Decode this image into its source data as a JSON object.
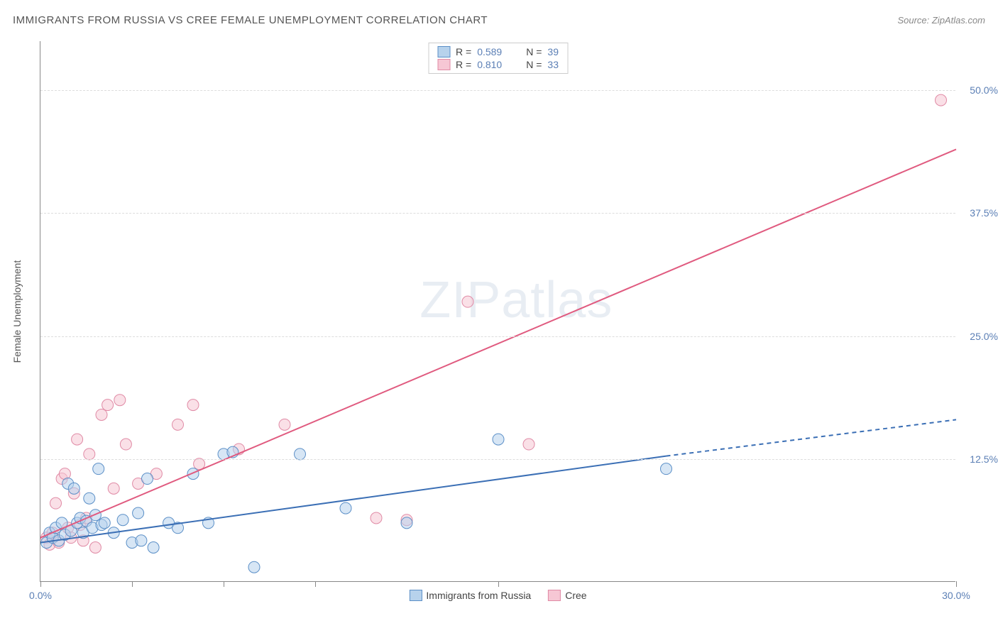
{
  "title": "IMMIGRANTS FROM RUSSIA VS CREE FEMALE UNEMPLOYMENT CORRELATION CHART",
  "source": "Source: ZipAtlas.com",
  "y_axis_label": "Female Unemployment",
  "watermark_a": "ZIP",
  "watermark_b": "atlas",
  "chart": {
    "type": "scatter-with-regression",
    "xlim": [
      0,
      30
    ],
    "ylim": [
      0,
      55
    ],
    "x_ticks": [
      0,
      3,
      6,
      9,
      15,
      30
    ],
    "x_tick_labels": {
      "0": "0.0%",
      "30": "30.0%"
    },
    "y_grid": [
      12.5,
      25.0,
      37.5,
      50.0
    ],
    "y_tick_labels": [
      "12.5%",
      "25.0%",
      "37.5%",
      "50.0%"
    ],
    "background_color": "#ffffff",
    "grid_color": "#dddddd",
    "axis_color": "#888888",
    "marker_radius": 8,
    "marker_opacity": 0.55,
    "series": {
      "russia": {
        "label": "Immigrants from Russia",
        "color_fill": "#b7d2ec",
        "color_stroke": "#5b8fc7",
        "line_color": "#3b6fb5",
        "line_width": 2,
        "dash_extension": true,
        "R": "0.589",
        "N": "39",
        "regression": {
          "x1": 0,
          "y1": 4.0,
          "x2": 20.5,
          "y2": 12.8,
          "x3": 30,
          "y3": 16.5
        },
        "points": [
          [
            0.2,
            4.0
          ],
          [
            0.3,
            5.0
          ],
          [
            0.4,
            4.5
          ],
          [
            0.5,
            5.5
          ],
          [
            0.6,
            4.2
          ],
          [
            0.7,
            6.0
          ],
          [
            0.8,
            4.8
          ],
          [
            0.9,
            10.0
          ],
          [
            1.0,
            5.2
          ],
          [
            1.1,
            9.5
          ],
          [
            1.2,
            6.0
          ],
          [
            1.3,
            6.5
          ],
          [
            1.4,
            5.0
          ],
          [
            1.5,
            6.2
          ],
          [
            1.6,
            8.5
          ],
          [
            1.7,
            5.5
          ],
          [
            1.8,
            6.8
          ],
          [
            1.9,
            11.5
          ],
          [
            2.0,
            5.8
          ],
          [
            2.1,
            6.0
          ],
          [
            2.4,
            5.0
          ],
          [
            2.7,
            6.3
          ],
          [
            3.0,
            4.0
          ],
          [
            3.2,
            7.0
          ],
          [
            3.3,
            4.2
          ],
          [
            3.5,
            10.5
          ],
          [
            3.7,
            3.5
          ],
          [
            4.2,
            6.0
          ],
          [
            4.5,
            5.5
          ],
          [
            5.0,
            11.0
          ],
          [
            5.5,
            6.0
          ],
          [
            6.0,
            13.0
          ],
          [
            6.3,
            13.2
          ],
          [
            7.0,
            1.5
          ],
          [
            8.5,
            13.0
          ],
          [
            10.0,
            7.5
          ],
          [
            12.0,
            6.0
          ],
          [
            15.0,
            14.5
          ],
          [
            20.5,
            11.5
          ]
        ]
      },
      "cree": {
        "label": "Cree",
        "color_fill": "#f6c7d4",
        "color_stroke": "#e08aa5",
        "line_color": "#e05a7f",
        "line_width": 2,
        "dash_extension": false,
        "R": "0.810",
        "N": "33",
        "regression": {
          "x1": 0,
          "y1": 4.5,
          "x2": 30,
          "y2": 44.0
        },
        "points": [
          [
            0.2,
            4.5
          ],
          [
            0.3,
            3.8
          ],
          [
            0.4,
            5.0
          ],
          [
            0.5,
            8.0
          ],
          [
            0.6,
            4.0
          ],
          [
            0.7,
            10.5
          ],
          [
            0.8,
            11.0
          ],
          [
            0.9,
            5.5
          ],
          [
            1.0,
            4.5
          ],
          [
            1.1,
            9.0
          ],
          [
            1.2,
            14.5
          ],
          [
            1.3,
            5.8
          ],
          [
            1.4,
            4.2
          ],
          [
            1.5,
            6.5
          ],
          [
            1.6,
            13.0
          ],
          [
            1.8,
            3.5
          ],
          [
            2.0,
            17.0
          ],
          [
            2.2,
            18.0
          ],
          [
            2.4,
            9.5
          ],
          [
            2.6,
            18.5
          ],
          [
            2.8,
            14.0
          ],
          [
            3.2,
            10.0
          ],
          [
            3.8,
            11.0
          ],
          [
            4.5,
            16.0
          ],
          [
            5.0,
            18.0
          ],
          [
            5.2,
            12.0
          ],
          [
            6.5,
            13.5
          ],
          [
            8.0,
            16.0
          ],
          [
            11.0,
            6.5
          ],
          [
            12.0,
            6.3
          ],
          [
            14.0,
            28.5
          ],
          [
            16.0,
            14.0
          ],
          [
            29.5,
            49.0
          ]
        ]
      }
    }
  },
  "stats_legend": {
    "R_label": "R =",
    "N_label": "N ="
  }
}
